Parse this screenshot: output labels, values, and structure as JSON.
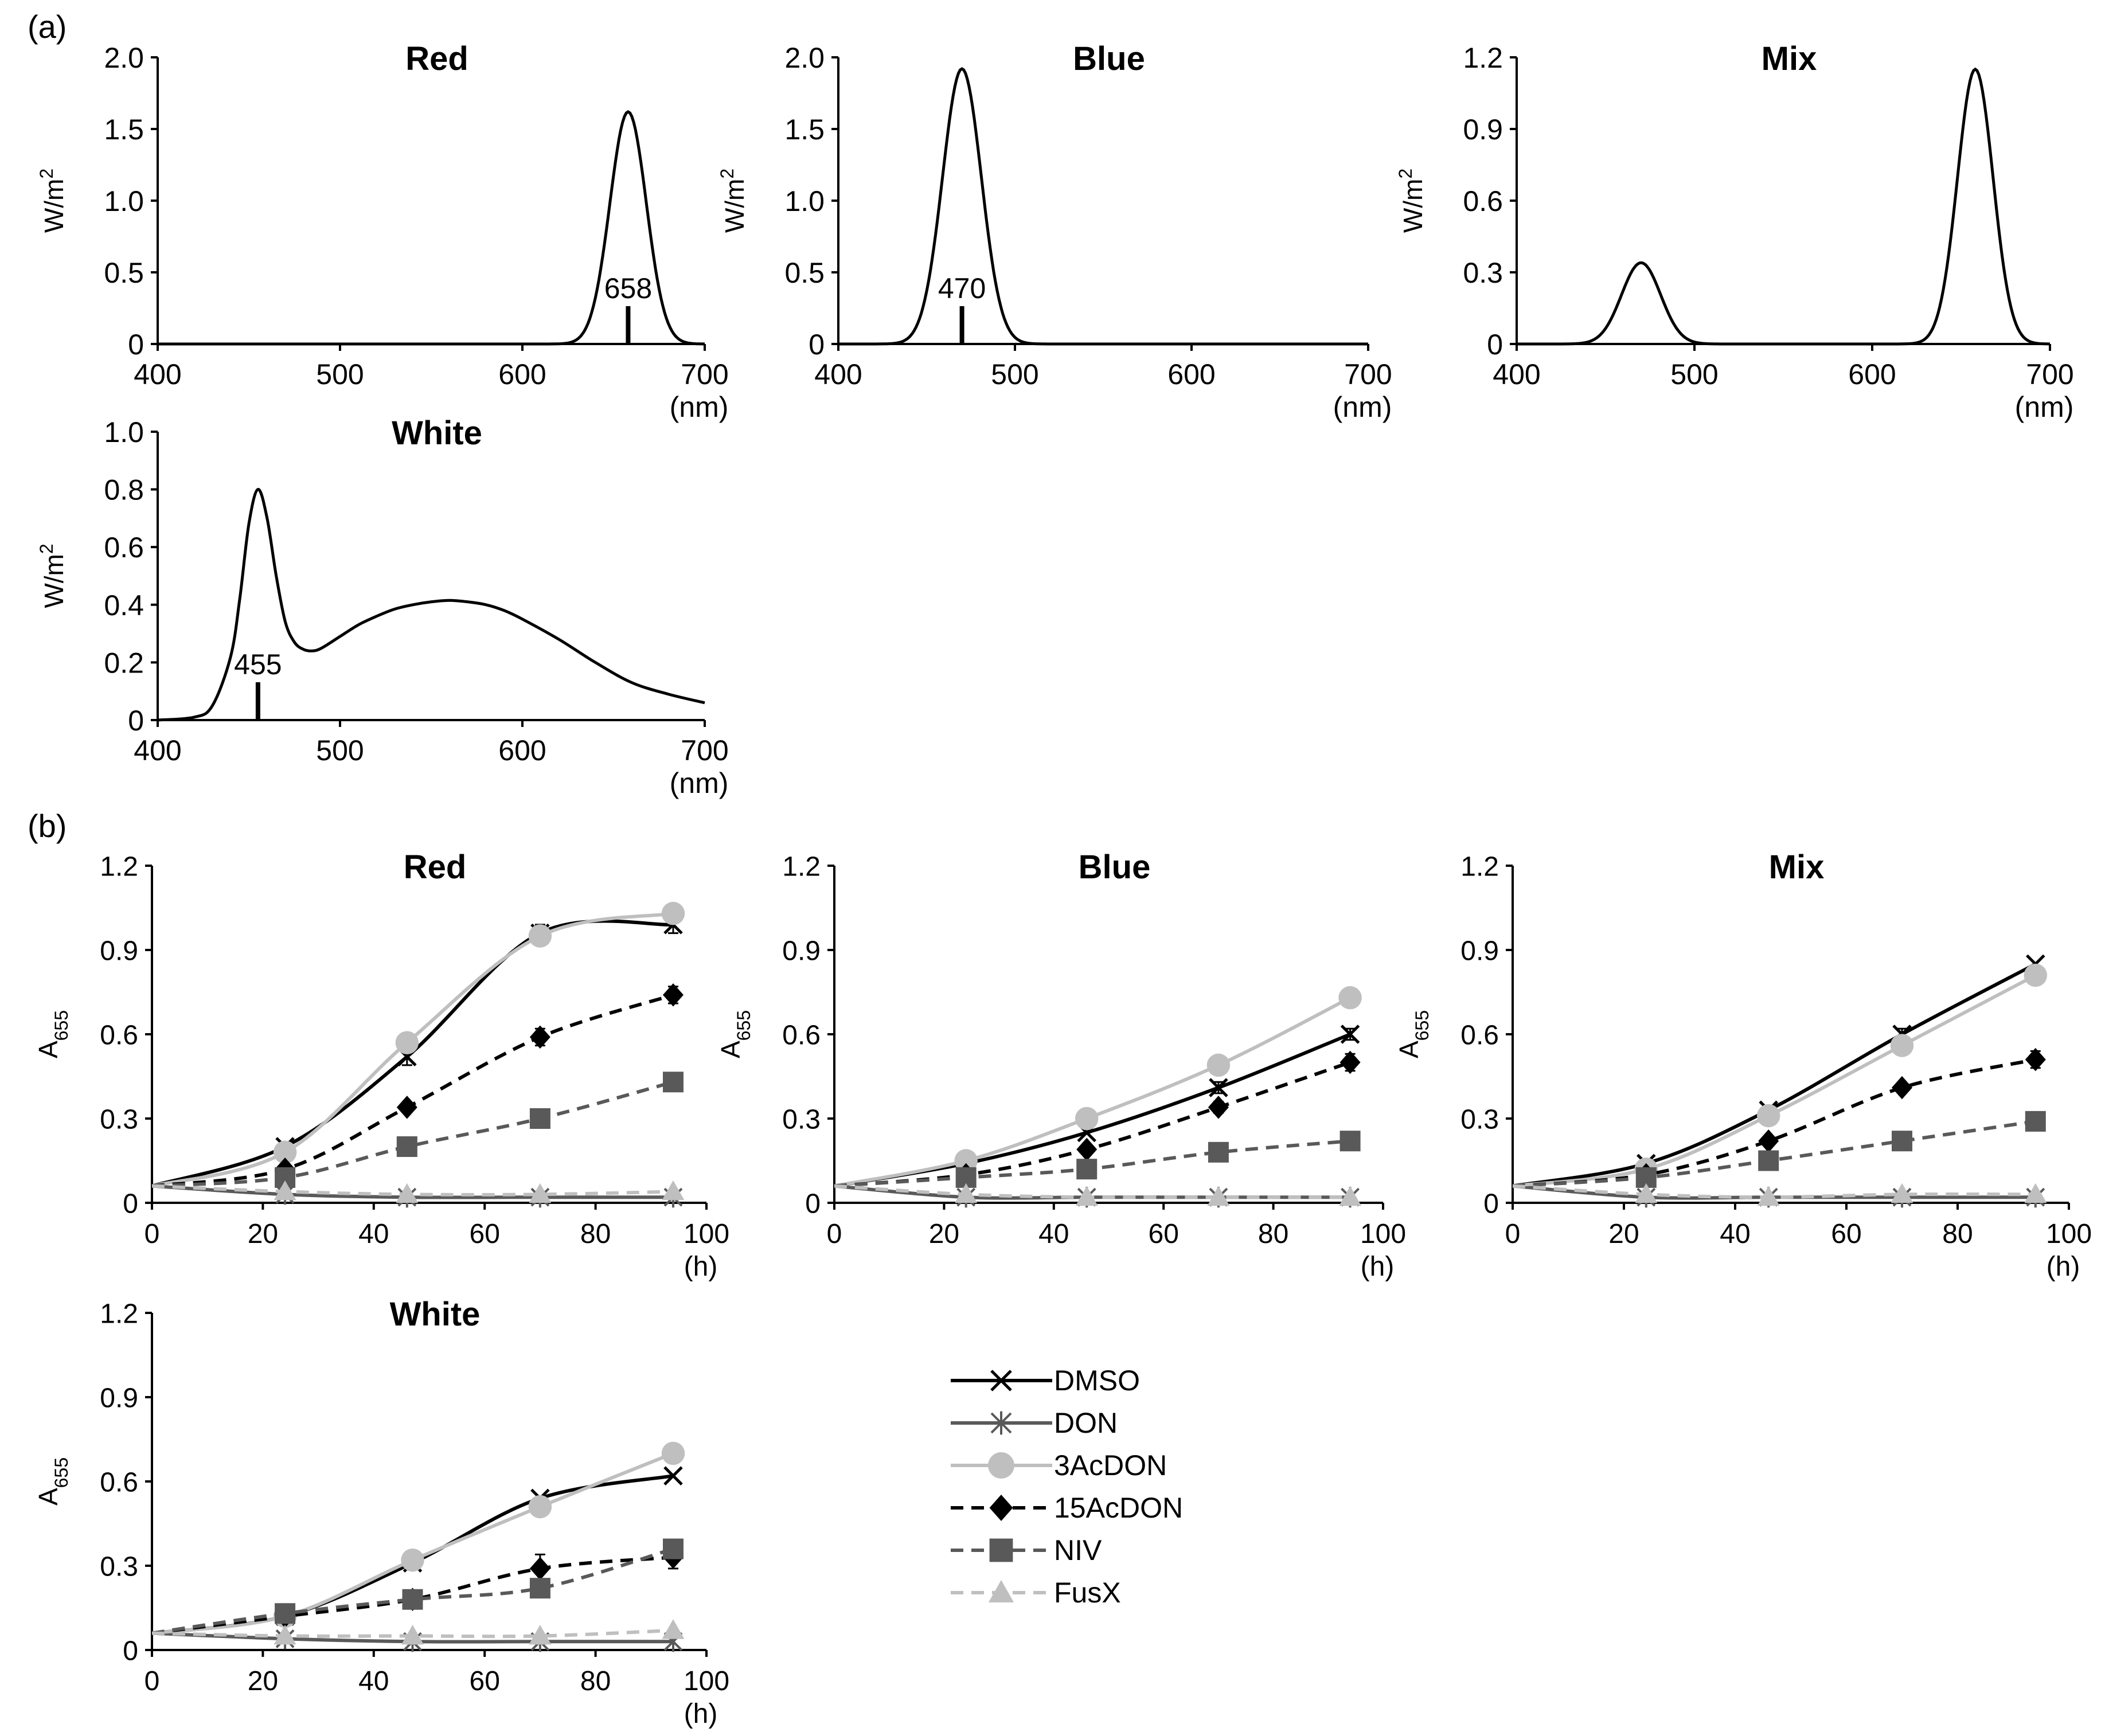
{
  "panels": {
    "a": "(a)",
    "b": "(b)"
  },
  "colors": {
    "axis": "#000000",
    "DMSO": "#000000",
    "DON": "#595959",
    "3AcDON": "#bfbfbf",
    "15AcDON": "#000000",
    "NIV": "#595959",
    "FusX": "#bfbfbf"
  },
  "chart_data": [
    {
      "id": "spec-red",
      "type": "line",
      "title": "Red",
      "xlabel": "(nm)",
      "ylabel": "W/m²",
      "xlim": [
        400,
        700
      ],
      "ylim": [
        0,
        2.0
      ],
      "xticks": [
        400,
        500,
        600,
        700
      ],
      "xtick_labels": [
        "400",
        "500",
        "600",
        "700"
      ],
      "yticks": [
        0,
        0.5,
        1.0,
        1.5,
        2.0
      ],
      "ytick_labels": [
        "0",
        "0.5",
        "1.0",
        "1.5",
        "2.0"
      ],
      "peaks": [
        {
          "center": 658,
          "height": 1.62,
          "width": 10
        }
      ],
      "annotation": {
        "text": "658",
        "x": 658
      }
    },
    {
      "id": "spec-blue",
      "type": "line",
      "title": "Blue",
      "xlabel": "(nm)",
      "ylabel": "W/m²",
      "xlim": [
        400,
        700
      ],
      "ylim": [
        0,
        2.0
      ],
      "xticks": [
        400,
        500,
        600,
        700
      ],
      "xtick_labels": [
        "400",
        "500",
        "600",
        "700"
      ],
      "yticks": [
        0,
        0.5,
        1.0,
        1.5,
        2.0
      ],
      "ytick_labels": [
        "0",
        "0.5",
        "1.0",
        "1.5",
        "2.0"
      ],
      "peaks": [
        {
          "center": 470,
          "height": 1.92,
          "width": 11
        }
      ],
      "annotation": {
        "text": "470",
        "x": 470
      }
    },
    {
      "id": "spec-mix",
      "type": "line",
      "title": "Mix",
      "xlabel": "(nm)",
      "ylabel": "W/m²",
      "xlim": [
        400,
        700
      ],
      "ylim": [
        0,
        1.2
      ],
      "xticks": [
        400,
        500,
        600,
        700
      ],
      "xtick_labels": [
        "400",
        "500",
        "600",
        "700"
      ],
      "yticks": [
        0,
        0.3,
        0.6,
        0.9,
        1.2
      ],
      "ytick_labels": [
        "0",
        "0.3",
        "0.6",
        "0.9",
        "1.2"
      ],
      "peaks": [
        {
          "center": 470,
          "height": 0.34,
          "width": 11
        },
        {
          "center": 658,
          "height": 1.15,
          "width": 10
        }
      ]
    },
    {
      "id": "spec-white",
      "type": "line",
      "title": "White",
      "xlabel": "(nm)",
      "ylabel": "W/m²",
      "xlim": [
        400,
        700
      ],
      "ylim": [
        0,
        1.0
      ],
      "xticks": [
        400,
        500,
        600,
        700
      ],
      "xtick_labels": [
        "400",
        "500",
        "600",
        "700"
      ],
      "yticks": [
        0,
        0.2,
        0.4,
        0.6,
        0.8,
        1.0
      ],
      "ytick_labels": [
        "0",
        "0.2",
        "0.4",
        "0.6",
        "0.8",
        "1.0"
      ],
      "curve": {
        "x": [
          400,
          420,
          430,
          440,
          445,
          450,
          455,
          460,
          465,
          470,
          475,
          480,
          485,
          490,
          500,
          510,
          520,
          530,
          540,
          550,
          560,
          570,
          580,
          590,
          600,
          620,
          640,
          660,
          680,
          700
        ],
        "y": [
          0,
          0.01,
          0.05,
          0.22,
          0.42,
          0.68,
          0.8,
          0.7,
          0.5,
          0.34,
          0.27,
          0.245,
          0.24,
          0.25,
          0.29,
          0.33,
          0.36,
          0.385,
          0.4,
          0.41,
          0.415,
          0.41,
          0.4,
          0.38,
          0.35,
          0.28,
          0.2,
          0.13,
          0.09,
          0.06
        ]
      },
      "annotation": {
        "text": "455",
        "x": 455
      }
    },
    {
      "id": "growth-red",
      "type": "line",
      "title": "Red",
      "xlabel": "(h)",
      "ylabel": "A655",
      "xlim": [
        0,
        100
      ],
      "ylim": [
        0,
        1.2
      ],
      "xticks": [
        0,
        20,
        40,
        60,
        80,
        100
      ],
      "xtick_labels": [
        "0",
        "20",
        "40",
        "60",
        "80",
        "100"
      ],
      "yticks": [
        0,
        0.3,
        0.6,
        0.9,
        1.2
      ],
      "ytick_labels": [
        "0",
        "0.3",
        "0.6",
        "0.9",
        "1.2"
      ],
      "x": [
        0,
        24,
        46,
        70,
        94
      ],
      "series": [
        {
          "name": "DMSO",
          "values": [
            0.06,
            0.2,
            0.52,
            0.96,
            0.99
          ],
          "err": [
            0,
            0.01,
            0.03,
            0.03,
            0.03
          ]
        },
        {
          "name": "DON",
          "values": [
            0.06,
            0.03,
            0.02,
            0.02,
            0.02
          ],
          "err": [
            0,
            0,
            0,
            0,
            0
          ]
        },
        {
          "name": "3AcDON",
          "values": [
            0.06,
            0.18,
            0.57,
            0.95,
            1.03
          ],
          "err": [
            0,
            0,
            0,
            0,
            0
          ]
        },
        {
          "name": "15AcDON",
          "values": [
            0.06,
            0.12,
            0.34,
            0.59,
            0.74
          ],
          "err": [
            0,
            0,
            0,
            0.03,
            0.03
          ]
        },
        {
          "name": "NIV",
          "values": [
            0.06,
            0.09,
            0.2,
            0.3,
            0.43
          ],
          "err": [
            0,
            0,
            0,
            0,
            0
          ]
        },
        {
          "name": "FusX",
          "values": [
            0.06,
            0.04,
            0.03,
            0.03,
            0.04
          ],
          "err": [
            0,
            0,
            0,
            0,
            0
          ]
        }
      ]
    },
    {
      "id": "growth-blue",
      "type": "line",
      "title": "Blue",
      "xlabel": "(h)",
      "ylabel": "A655",
      "xlim": [
        0,
        100
      ],
      "ylim": [
        0,
        1.2
      ],
      "xticks": [
        0,
        20,
        40,
        60,
        80,
        100
      ],
      "xtick_labels": [
        "0",
        "20",
        "40",
        "60",
        "80",
        "100"
      ],
      "yticks": [
        0,
        0.3,
        0.6,
        0.9,
        1.2
      ],
      "ytick_labels": [
        "0",
        "0.3",
        "0.6",
        "0.9",
        "1.2"
      ],
      "x": [
        0,
        24,
        46,
        70,
        94
      ],
      "series": [
        {
          "name": "DMSO",
          "values": [
            0.06,
            0.14,
            0.25,
            0.41,
            0.6
          ],
          "err": [
            0,
            0,
            0,
            0.02,
            0.02
          ]
        },
        {
          "name": "DON",
          "values": [
            0.06,
            0.02,
            0.02,
            0.02,
            0.02
          ],
          "err": [
            0,
            0,
            0,
            0,
            0
          ]
        },
        {
          "name": "3AcDON",
          "values": [
            0.06,
            0.15,
            0.3,
            0.49,
            0.73
          ],
          "err": [
            0,
            0,
            0,
            0,
            0
          ]
        },
        {
          "name": "15AcDON",
          "values": [
            0.06,
            0.1,
            0.19,
            0.34,
            0.5
          ],
          "err": [
            0,
            0,
            0,
            0.02,
            0.03
          ]
        },
        {
          "name": "NIV",
          "values": [
            0.06,
            0.09,
            0.12,
            0.18,
            0.22
          ],
          "err": [
            0,
            0,
            0,
            0,
            0
          ]
        },
        {
          "name": "FusX",
          "values": [
            0.06,
            0.03,
            0.02,
            0.02,
            0.02
          ],
          "err": [
            0,
            0,
            0,
            0,
            0
          ]
        }
      ]
    },
    {
      "id": "growth-mix",
      "type": "line",
      "title": "Mix",
      "xlabel": "(h)",
      "ylabel": "A655",
      "xlim": [
        0,
        100
      ],
      "ylim": [
        0,
        1.2
      ],
      "xticks": [
        0,
        20,
        40,
        60,
        80,
        100
      ],
      "xtick_labels": [
        "0",
        "20",
        "40",
        "60",
        "80",
        "100"
      ],
      "yticks": [
        0,
        0.3,
        0.6,
        0.9,
        1.2
      ],
      "ytick_labels": [
        "0",
        "0.3",
        "0.6",
        "0.9",
        "1.2"
      ],
      "x": [
        0,
        24,
        46,
        70,
        94
      ],
      "series": [
        {
          "name": "DMSO",
          "values": [
            0.06,
            0.14,
            0.33,
            0.6,
            0.85
          ],
          "err": [
            0,
            0,
            0,
            0.02,
            0
          ]
        },
        {
          "name": "DON",
          "values": [
            0.06,
            0.02,
            0.02,
            0.02,
            0.02
          ],
          "err": [
            0,
            0,
            0,
            0,
            0
          ]
        },
        {
          "name": "3AcDON",
          "values": [
            0.06,
            0.12,
            0.31,
            0.56,
            0.81
          ],
          "err": [
            0,
            0,
            0,
            0,
            0
          ]
        },
        {
          "name": "15AcDON",
          "values": [
            0.06,
            0.1,
            0.22,
            0.41,
            0.51
          ],
          "err": [
            0,
            0,
            0,
            0,
            0.03
          ]
        },
        {
          "name": "NIV",
          "values": [
            0.06,
            0.09,
            0.15,
            0.22,
            0.29
          ],
          "err": [
            0,
            0,
            0,
            0,
            0
          ]
        },
        {
          "name": "FusX",
          "values": [
            0.06,
            0.03,
            0.02,
            0.03,
            0.03
          ],
          "err": [
            0,
            0,
            0,
            0,
            0
          ]
        }
      ]
    },
    {
      "id": "growth-white",
      "type": "line",
      "title": "White",
      "xlabel": "(h)",
      "ylabel": "A655",
      "xlim": [
        0,
        100
      ],
      "ylim": [
        0,
        1.2
      ],
      "xticks": [
        0,
        20,
        40,
        60,
        80,
        100
      ],
      "xtick_labels": [
        "0",
        "20",
        "40",
        "60",
        "80",
        "100"
      ],
      "yticks": [
        0,
        0.3,
        0.6,
        0.9,
        1.2
      ],
      "ytick_labels": [
        "0",
        "0.3",
        "0.6",
        "0.9",
        "1.2"
      ],
      "x": [
        0,
        24,
        47,
        70,
        94
      ],
      "series": [
        {
          "name": "DMSO",
          "values": [
            0.06,
            0.12,
            0.31,
            0.54,
            0.62
          ],
          "err": [
            0,
            0,
            0,
            0,
            0
          ]
        },
        {
          "name": "DON",
          "values": [
            0.06,
            0.04,
            0.03,
            0.03,
            0.03
          ],
          "err": [
            0,
            0,
            0,
            0,
            0
          ]
        },
        {
          "name": "3AcDON",
          "values": [
            0.06,
            0.12,
            0.32,
            0.51,
            0.7
          ],
          "err": [
            0,
            0,
            0,
            0,
            0
          ]
        },
        {
          "name": "15AcDON",
          "values": [
            0.06,
            0.12,
            0.18,
            0.29,
            0.33
          ],
          "err": [
            0,
            0,
            0,
            0.05,
            0.04
          ]
        },
        {
          "name": "NIV",
          "values": [
            0.06,
            0.13,
            0.18,
            0.22,
            0.36
          ],
          "err": [
            0,
            0,
            0,
            0,
            0
          ]
        },
        {
          "name": "FusX",
          "values": [
            0.06,
            0.05,
            0.05,
            0.05,
            0.07
          ],
          "err": [
            0,
            0,
            0,
            0,
            0
          ]
        }
      ]
    }
  ],
  "legend": {
    "entries": [
      {
        "name": "DMSO",
        "label": "DMSO"
      },
      {
        "name": "DON",
        "label": "DON"
      },
      {
        "name": "3AcDON",
        "label": "3AcDON"
      },
      {
        "name": "15AcDON",
        "label": "15AcDON"
      },
      {
        "name": "NIV",
        "label": "NIV"
      },
      {
        "name": "FusX",
        "label": "FusX"
      }
    ]
  }
}
